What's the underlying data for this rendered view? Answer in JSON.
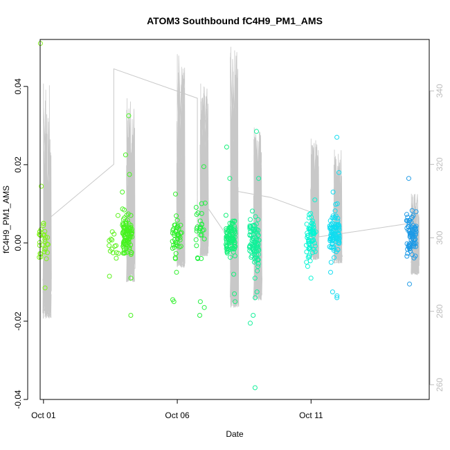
{
  "chart_data": {
    "type": "scatter",
    "title": "ATOM3 Southbound fC4H9_PM1_AMS",
    "xlabel": "Date",
    "ylabel": "fC4H9_PM1_AMS",
    "x_ticks": [
      "Oct 01",
      "Oct 06",
      "Oct 11"
    ],
    "y_ticks": [
      "-0.04",
      "-0.02",
      "0.00",
      "0.02",
      "0.04"
    ],
    "y_tick_values": [
      -0.04,
      -0.02,
      0.0,
      0.02,
      0.04
    ],
    "y2_ticks": [
      "260",
      "280",
      "300",
      "320",
      "340"
    ],
    "y2_tick_values": [
      260,
      280,
      300,
      320,
      340
    ],
    "xlim": [
      "Sep 30 21:00",
      "Oct 15 10:00"
    ],
    "ylim": [
      -0.04,
      0.052
    ],
    "y2lim": [
      256,
      354
    ],
    "grid": false,
    "legend": "none",
    "colors": {
      "secondary_line": "#c8c8c8",
      "right_axis": "#bdbdbd",
      "point_gradient": [
        "#7ff21a",
        "#33f222",
        "#14f07a",
        "#00ffe0",
        "#1e9ae6"
      ]
    },
    "clusters": [
      {
        "date": "Oct 01 00:00",
        "color": "#7ff21a",
        "n": 30,
        "center": 0.001,
        "spread": 0.004,
        "min": -0.0115,
        "max": 0.0145,
        "outliers": [
          0.051
        ]
      },
      {
        "date": "Oct 03 15:00",
        "color": "#5cf21c",
        "n": 14,
        "center": -0.001,
        "spread": 0.004,
        "min": -0.0085,
        "max": 0.007,
        "outliers": []
      },
      {
        "date": "Oct 04 03:00",
        "color": "#46f21f",
        "n": 90,
        "center": 0.002,
        "spread": 0.0045,
        "min": -0.009,
        "max": 0.013,
        "outliers": [
          0.0325,
          0.0225,
          0.0175,
          -0.0185
        ]
      },
      {
        "date": "Oct 06 00:00",
        "color": "#2ef02a",
        "n": 40,
        "center": 0.001,
        "spread": 0.004,
        "min": -0.0075,
        "max": 0.0125,
        "outliers": [
          -0.0145,
          -0.015
        ]
      },
      {
        "date": "Oct 06 21:00",
        "color": "#22f040",
        "n": 25,
        "center": 0.004,
        "spread": 0.006,
        "min": -0.004,
        "max": 0.0195,
        "outliers": [
          -0.015,
          -0.0165,
          -0.0185
        ]
      },
      {
        "date": "Oct 08 00:00",
        "color": "#14f07a",
        "n": 90,
        "center": 0.0015,
        "spread": 0.004,
        "min": -0.008,
        "max": 0.0165,
        "outliers": [
          0.0245,
          -0.013,
          -0.015
        ]
      },
      {
        "date": "Oct 08 21:00",
        "color": "#12f09a",
        "n": 85,
        "center": 0.0,
        "spread": 0.005,
        "min": -0.009,
        "max": 0.0165,
        "outliers": [
          0.0285,
          -0.0125,
          -0.014,
          -0.0185,
          -0.0205,
          -0.037
        ]
      },
      {
        "date": "Oct 11 00:00",
        "color": "#06f5d4",
        "n": 60,
        "center": 0.002,
        "spread": 0.0045,
        "min": -0.006,
        "max": 0.011,
        "outliers": [
          -0.009
        ]
      },
      {
        "date": "Oct 11 21:00",
        "color": "#10dcf0",
        "n": 95,
        "center": 0.002,
        "spread": 0.0045,
        "min": -0.0075,
        "max": 0.013,
        "outliers": [
          0.027,
          0.018,
          -0.0125,
          -0.0135,
          -0.014
        ]
      },
      {
        "date": "Oct 14 18:00",
        "color": "#1e9ae6",
        "n": 80,
        "center": 0.002,
        "spread": 0.004,
        "min": -0.0105,
        "max": 0.0165,
        "outliers": []
      }
    ],
    "secondary_series": {
      "axis": "right",
      "color": "#c8c8c8",
      "points": [
        [
          "Oct 01 00:00",
          304
        ],
        [
          "Oct 03 15:00",
          320
        ],
        [
          "Oct 03 15:00",
          333
        ],
        [
          "Oct 03 15:00",
          346
        ],
        [
          "Oct 06 18:00",
          338
        ],
        [
          "Oct 06 18:00",
          300
        ],
        [
          "Oct 06 21:00",
          311
        ],
        [
          "Oct 08 00:00",
          299
        ],
        [
          "Oct 08 00:00",
          313
        ],
        [
          "Oct 09 12:00",
          311
        ],
        [
          "Oct 11 00:00",
          307
        ],
        [
          "Oct 11 00:00",
          300
        ],
        [
          "Oct 12 00:00",
          301
        ],
        [
          "Oct 14 18:00",
          304
        ]
      ],
      "spikes": [
        {
          "date": "Oct 01 00:00",
          "min": 278,
          "max": 342
        },
        {
          "date": "Oct 04 03:00",
          "min": 288,
          "max": 338
        },
        {
          "date": "Oct 06 00:00",
          "min": 292,
          "max": 350
        },
        {
          "date": "Oct 06 21:00",
          "min": 295,
          "max": 342
        },
        {
          "date": "Oct 08 00:00",
          "min": 281,
          "max": 352
        },
        {
          "date": "Oct 08 21:00",
          "min": 283,
          "max": 330
        },
        {
          "date": "Oct 11 00:00",
          "min": 294,
          "max": 327
        },
        {
          "date": "Oct 11 21:00",
          "min": 293,
          "max": 324
        },
        {
          "date": "Oct 14 18:00",
          "min": 290,
          "max": 312
        }
      ]
    }
  }
}
